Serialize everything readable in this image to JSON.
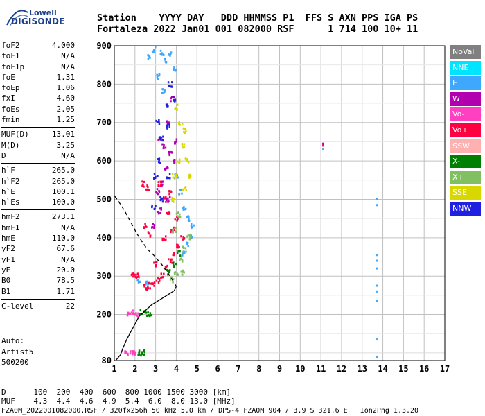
{
  "logo": {
    "brand": "Lowell",
    "name": "DIGISONDE"
  },
  "header": {
    "line1": "Station    YYYY DAY   DDD HHMMSS P1  FFS S AXN PPS IGA PS",
    "line2": "Fortaleza 2022 Jan01 001 082000 RSF      1 714 100 10+ 11"
  },
  "params": {
    "group1": [
      {
        "label": "foF2",
        "value": "4.000"
      },
      {
        "label": "foF1",
        "value": "N/A"
      },
      {
        "label": "foF1p",
        "value": "N/A"
      },
      {
        "label": "foE",
        "value": "1.31"
      },
      {
        "label": "foEp",
        "value": "1.06"
      },
      {
        "label": "fxI",
        "value": "4.60"
      },
      {
        "label": "foEs",
        "value": "2.05"
      },
      {
        "label": "fmin",
        "value": "1.25"
      }
    ],
    "group2": [
      {
        "label": "MUF(D)",
        "value": "13.01"
      },
      {
        "label": "M(D)",
        "value": "3.25"
      },
      {
        "label": "D",
        "value": "N/A"
      }
    ],
    "group3": [
      {
        "label": "h`F",
        "value": "265.0"
      },
      {
        "label": "h`F2",
        "value": "265.0"
      },
      {
        "label": "h`E",
        "value": "100.1"
      },
      {
        "label": "h`Es",
        "value": "100.0"
      }
    ],
    "group4": [
      {
        "label": "hmF2",
        "value": "273.1"
      },
      {
        "label": "hmF1",
        "value": "N/A"
      },
      {
        "label": "hmE",
        "value": "110.0"
      },
      {
        "label": "yF2",
        "value": "67.6"
      },
      {
        "label": "yF1",
        "value": "N/A"
      },
      {
        "label": "yE",
        "value": "20.0"
      },
      {
        "label": "B0",
        "value": "78.5"
      },
      {
        "label": "B1",
        "value": "1.71"
      }
    ],
    "group5": [
      {
        "label": "C-level",
        "value": "22"
      }
    ]
  },
  "auto": {
    "line1": "Auto:",
    "line2": "Artist5",
    "line3": "500200"
  },
  "legend": [
    {
      "label": "NoVal",
      "color": "#808080"
    },
    {
      "label": "NNE",
      "color": "#00e5ff"
    },
    {
      "label": "E",
      "color": "#3ea8ff"
    },
    {
      "label": "W",
      "color": "#b000b0"
    },
    {
      "label": "Vo-",
      "color": "#ff40c0"
    },
    {
      "label": "Vo+",
      "color": "#ff0040"
    },
    {
      "label": "SSW",
      "color": "#ffb0b0"
    },
    {
      "label": "X-",
      "color": "#008000"
    },
    {
      "label": "X+",
      "color": "#80c060"
    },
    {
      "label": "SSE",
      "color": "#d8d800"
    },
    {
      "label": "NNW",
      "color": "#2020e0"
    }
  ],
  "footer": {
    "d_line": "D      100  200  400  600  800 1000 1500 3000 [km]",
    "muf_line": "MUF    4.3  4.4  4.6  4.9  5.4  6.0  8.0 13.0 [MHz]",
    "file_line": "FZA0M_2022001082000.RSF / 320fx256h 50 kHz 5.0 km / DPS-4 FZA0M 904 / 3.9 S 321.6 E   Ion2Png 1.3.20"
  },
  "chart_data": {
    "type": "scatter",
    "title": "",
    "xlabel": "",
    "ylabel": "",
    "xlim": [
      1,
      17
    ],
    "ylim": [
      80,
      900
    ],
    "x_ticks": [
      1,
      2,
      3,
      4,
      5,
      6,
      7,
      8,
      9,
      10,
      11,
      12,
      13,
      14,
      15,
      16,
      17
    ],
    "y_ticks": [
      80,
      200,
      300,
      400,
      500,
      600,
      700,
      800,
      900
    ],
    "grid": true,
    "series": [
      {
        "name": "E",
        "color": "#3ea8ff",
        "points": [
          [
            2.7,
            870
          ],
          [
            2.9,
            890
          ],
          [
            3.3,
            880
          ],
          [
            3.5,
            860
          ],
          [
            3.7,
            880
          ],
          [
            3.9,
            840
          ],
          [
            3.1,
            820
          ],
          [
            3.4,
            780
          ],
          [
            4.0,
            560
          ],
          [
            4.2,
            520
          ],
          [
            4.4,
            480
          ],
          [
            4.6,
            450
          ],
          [
            4.8,
            430
          ],
          [
            4.7,
            400
          ],
          [
            4.5,
            380
          ],
          [
            4.3,
            360
          ],
          [
            2.2,
            290
          ],
          [
            2.6,
            280
          ],
          [
            11.1,
            630
          ],
          [
            13.7,
            500
          ],
          [
            13.7,
            485
          ],
          [
            13.7,
            355
          ],
          [
            13.7,
            340
          ],
          [
            13.7,
            320
          ],
          [
            13.7,
            275
          ],
          [
            13.7,
            260
          ],
          [
            13.7,
            235
          ],
          [
            13.7,
            135
          ],
          [
            13.7,
            90
          ]
        ]
      },
      {
        "name": "W",
        "color": "#b000b0",
        "points": [
          [
            3.2,
            660
          ],
          [
            3.4,
            640
          ],
          [
            3.6,
            700
          ],
          [
            3.8,
            760
          ],
          [
            3.7,
            620
          ],
          [
            3.5,
            580
          ],
          [
            3.3,
            540
          ],
          [
            3.1,
            520
          ],
          [
            3.9,
            600
          ],
          [
            3.6,
            500
          ],
          [
            3.2,
            470
          ],
          [
            2.9,
            430
          ],
          [
            4.0,
            650
          ],
          [
            11.1,
            645
          ]
        ]
      },
      {
        "name": "Vo-",
        "color": "#ff40c0",
        "points": [
          [
            1.7,
            200
          ],
          [
            1.9,
            205
          ],
          [
            2.1,
            200
          ],
          [
            1.6,
            100
          ],
          [
            1.8,
            100
          ],
          [
            2.0,
            100
          ]
        ]
      },
      {
        "name": "Vo+",
        "color": "#ff0040",
        "points": [
          [
            2.5,
            270
          ],
          [
            2.7,
            275
          ],
          [
            2.9,
            280
          ],
          [
            3.1,
            290
          ],
          [
            3.3,
            300
          ],
          [
            3.5,
            320
          ],
          [
            3.7,
            340
          ],
          [
            3.9,
            360
          ],
          [
            4.1,
            380
          ],
          [
            3.8,
            420
          ],
          [
            3.6,
            460
          ],
          [
            3.4,
            500
          ],
          [
            3.2,
            540
          ],
          [
            2.7,
            410
          ],
          [
            2.5,
            430
          ],
          [
            2.4,
            540
          ],
          [
            2.6,
            530
          ],
          [
            1.9,
            300
          ],
          [
            2.1,
            300
          ],
          [
            4.0,
            450
          ],
          [
            4.3,
            400
          ],
          [
            3.0,
            330
          ],
          [
            3.4,
            400
          ],
          [
            3.7,
            520
          ],
          [
            11.1,
            640
          ]
        ]
      },
      {
        "name": "X-",
        "color": "#008000",
        "points": [
          [
            2.3,
            205
          ],
          [
            2.5,
            202
          ],
          [
            2.7,
            200
          ],
          [
            2.2,
            100
          ],
          [
            2.4,
            100
          ],
          [
            3.6,
            310
          ],
          [
            3.9,
            330
          ],
          [
            4.1,
            360
          ]
        ]
      },
      {
        "name": "X+",
        "color": "#80c060",
        "points": [
          [
            3.8,
            290
          ],
          [
            4.0,
            310
          ],
          [
            4.2,
            340
          ],
          [
            4.4,
            370
          ],
          [
            4.6,
            400
          ],
          [
            4.3,
            310
          ],
          [
            3.9,
            420
          ],
          [
            4.1,
            460
          ]
        ]
      },
      {
        "name": "SSE",
        "color": "#d8d800",
        "points": [
          [
            3.9,
            560
          ],
          [
            4.1,
            600
          ],
          [
            4.3,
            640
          ],
          [
            4.4,
            680
          ],
          [
            4.2,
            700
          ],
          [
            4.5,
            600
          ],
          [
            4.6,
            560
          ],
          [
            4.4,
            530
          ],
          [
            4.0,
            740
          ],
          [
            3.8,
            500
          ]
        ]
      },
      {
        "name": "NNW",
        "color": "#2020e0",
        "points": [
          [
            3.1,
            700
          ],
          [
            3.3,
            660
          ],
          [
            3.5,
            740
          ],
          [
            3.6,
            690
          ],
          [
            3.2,
            600
          ],
          [
            3.0,
            560
          ],
          [
            3.3,
            500
          ],
          [
            3.6,
            560
          ],
          [
            2.9,
            480
          ],
          [
            3.7,
            800
          ],
          [
            3.9,
            760
          ]
        ]
      }
    ],
    "profile_curve": [
      [
        1.1,
        82
      ],
      [
        1.3,
        95
      ],
      [
        1.4,
        110
      ],
      [
        1.6,
        135
      ],
      [
        1.8,
        155
      ],
      [
        2.0,
        175
      ],
      [
        2.2,
        195
      ],
      [
        2.5,
        210
      ],
      [
        2.8,
        225
      ],
      [
        3.1,
        235
      ],
      [
        3.4,
        245
      ],
      [
        3.7,
        255
      ],
      [
        3.9,
        262
      ],
      [
        4.0,
        273
      ]
    ],
    "extrapolation_curve": [
      [
        4.0,
        273
      ],
      [
        3.7,
        300
      ],
      [
        3.3,
        330
      ],
      [
        2.9,
        355
      ],
      [
        2.6,
        370
      ],
      [
        2.4,
        385
      ],
      [
        2.1,
        410
      ],
      [
        1.8,
        440
      ],
      [
        1.5,
        470
      ],
      [
        1.2,
        495
      ],
      [
        1.0,
        510
      ]
    ]
  }
}
